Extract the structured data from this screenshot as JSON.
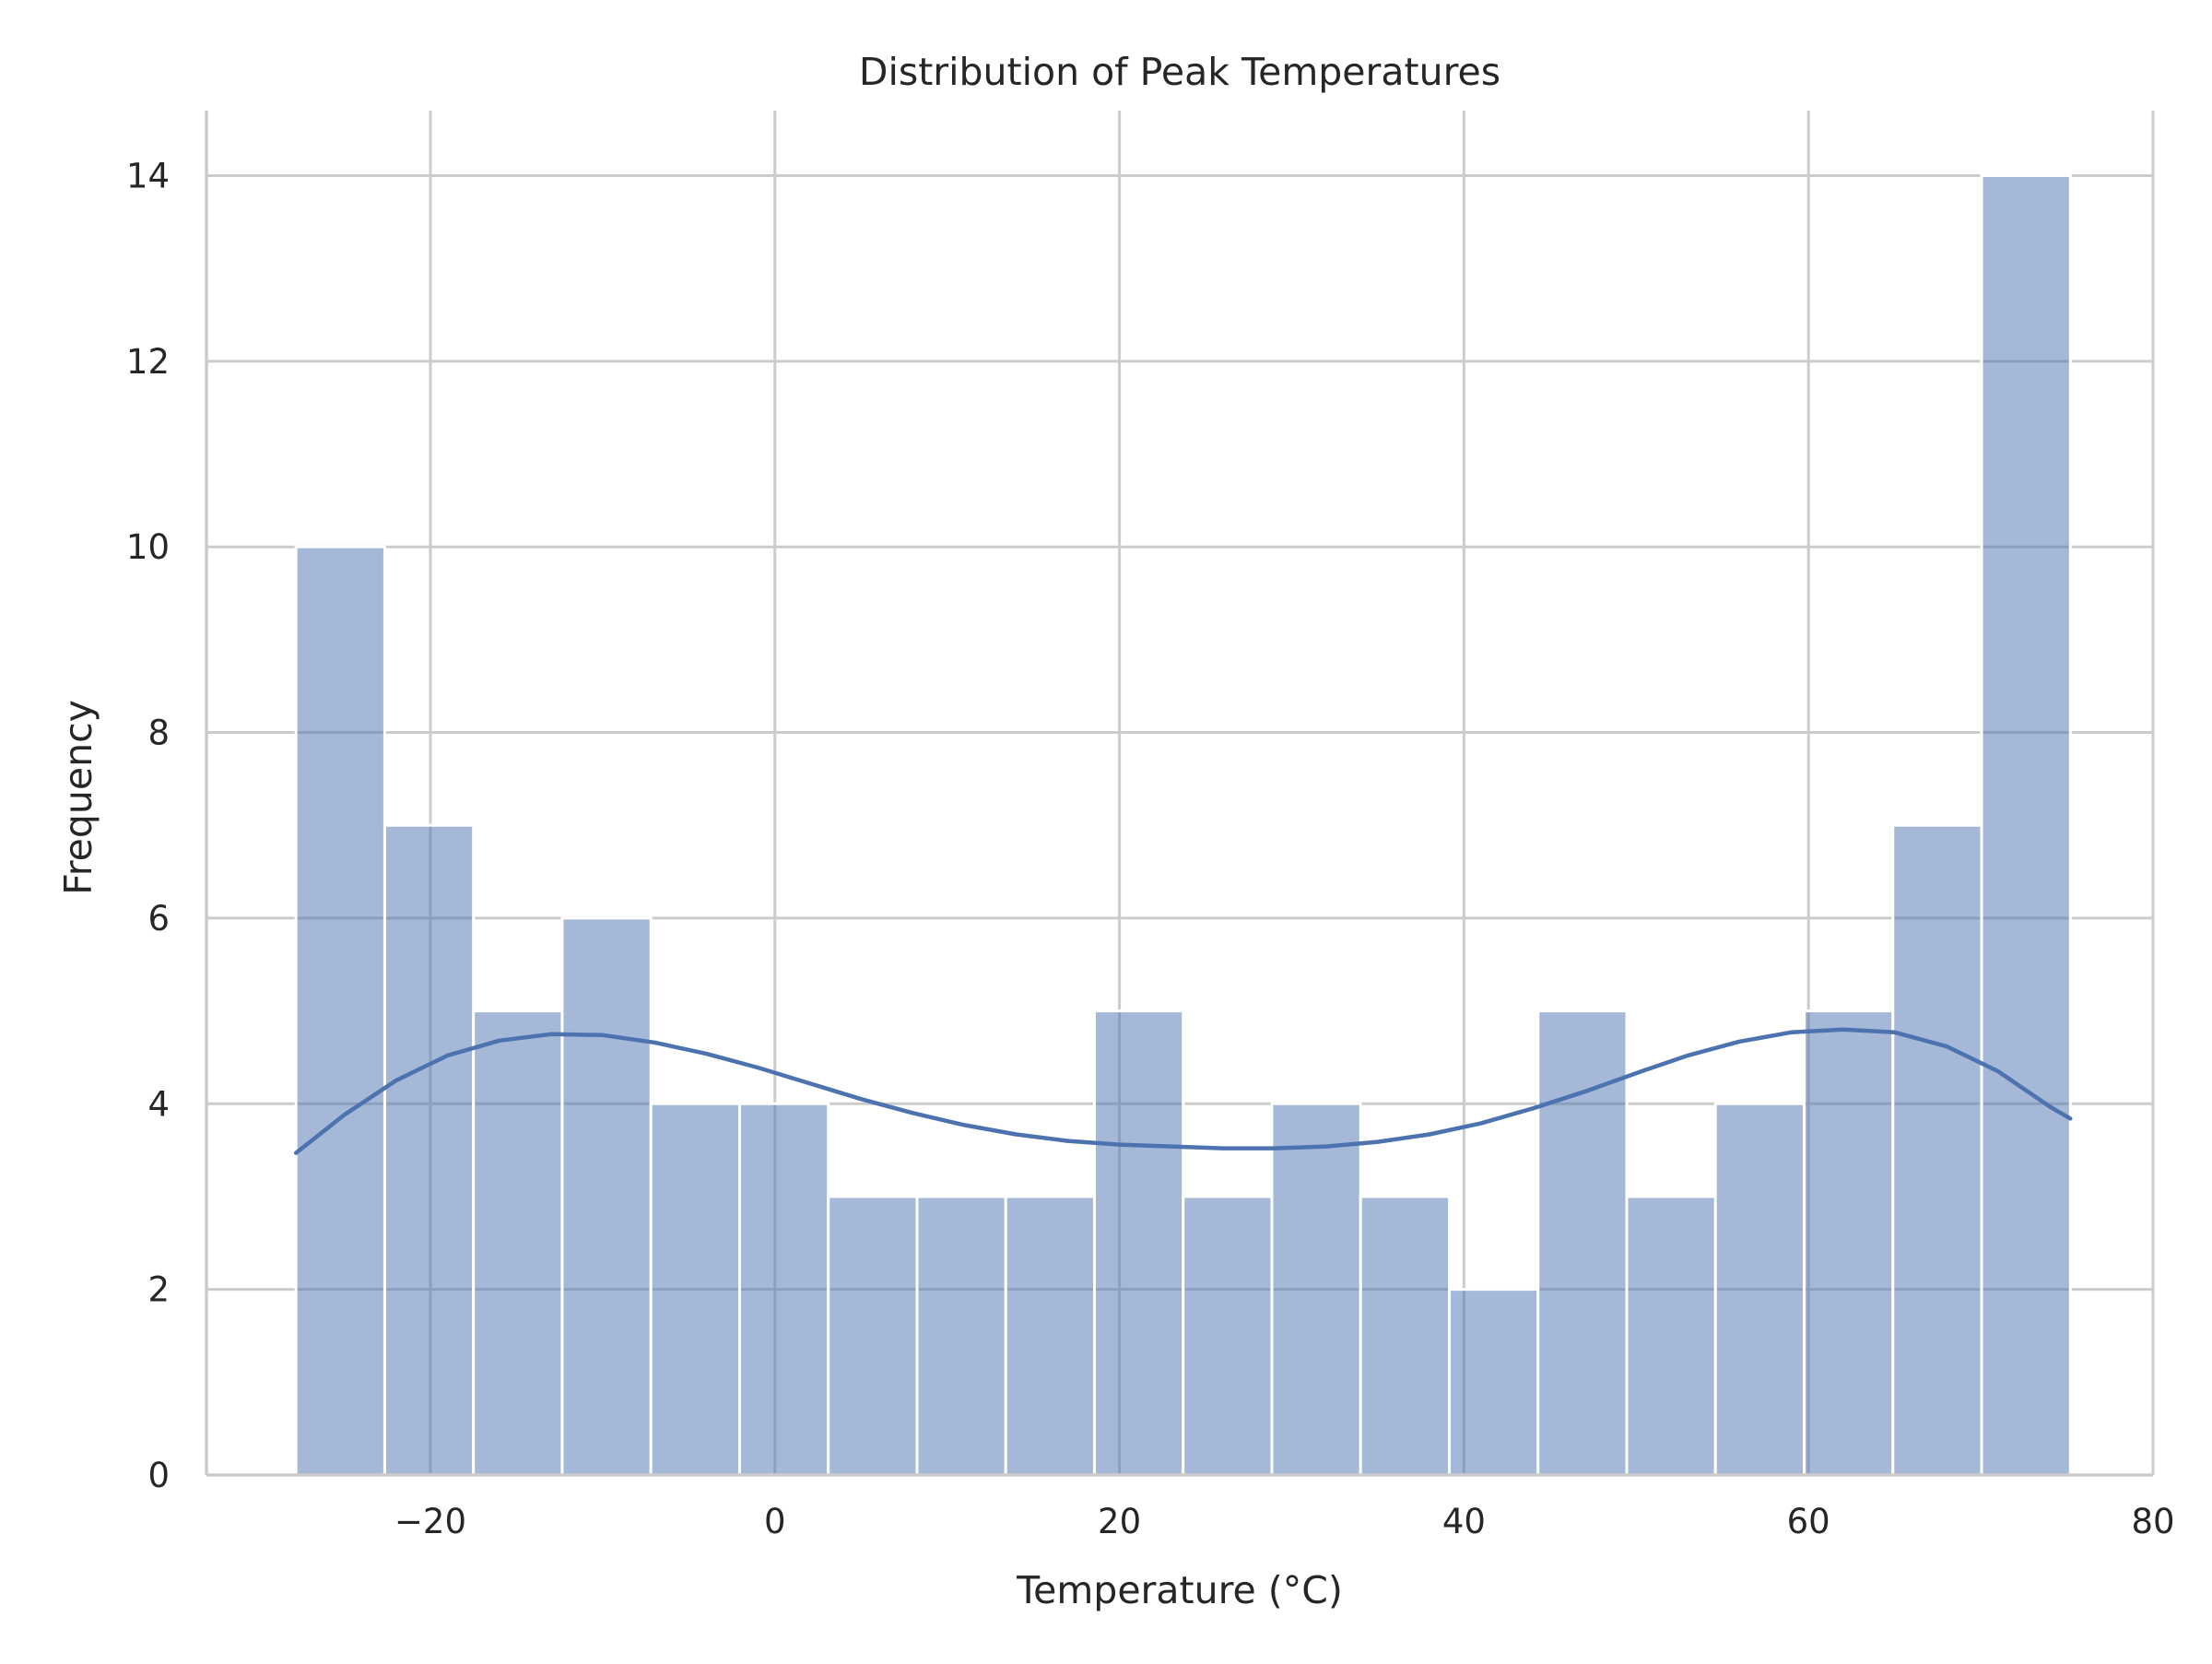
{
  "chart_data": {
    "type": "bar",
    "subtype": "histogram",
    "title": "Distribution of Peak Temperatures",
    "xlabel": "Temperature (°C)",
    "ylabel": "Frequency",
    "xlim": [
      -33,
      80
    ],
    "ylim": [
      0,
      14.7
    ],
    "x_ticks": [
      -20,
      0,
      20,
      40,
      60,
      80
    ],
    "y_ticks": [
      0,
      2,
      4,
      6,
      8,
      10,
      12,
      14
    ],
    "grid": true,
    "bar_color": "#4c72b0",
    "bar_opacity": 0.5,
    "kde_color": "#4c72b0",
    "bins": {
      "start": -27.8,
      "width": 5.15,
      "counts": [
        10,
        7,
        5,
        6,
        4,
        4,
        3,
        3,
        3,
        5,
        3,
        4,
        3,
        2,
        5,
        3,
        4,
        5,
        7,
        14
      ]
    },
    "kde_curve": {
      "x": [
        -27.8,
        -25,
        -22,
        -19,
        -16,
        -13,
        -10,
        -7,
        -4,
        -1,
        2,
        5,
        8,
        11,
        14,
        17,
        20,
        23,
        26,
        29,
        32,
        35,
        38,
        41,
        44,
        47,
        50,
        53,
        56,
        59,
        62,
        65,
        68,
        71,
        74,
        75.2
      ],
      "y": [
        3.47,
        3.88,
        4.25,
        4.52,
        4.68,
        4.75,
        4.74,
        4.66,
        4.54,
        4.39,
        4.22,
        4.05,
        3.9,
        3.77,
        3.67,
        3.6,
        3.56,
        3.54,
        3.52,
        3.52,
        3.54,
        3.59,
        3.67,
        3.79,
        3.95,
        4.13,
        4.33,
        4.52,
        4.67,
        4.77,
        4.8,
        4.77,
        4.62,
        4.35,
        3.97,
        3.84
      ]
    }
  }
}
